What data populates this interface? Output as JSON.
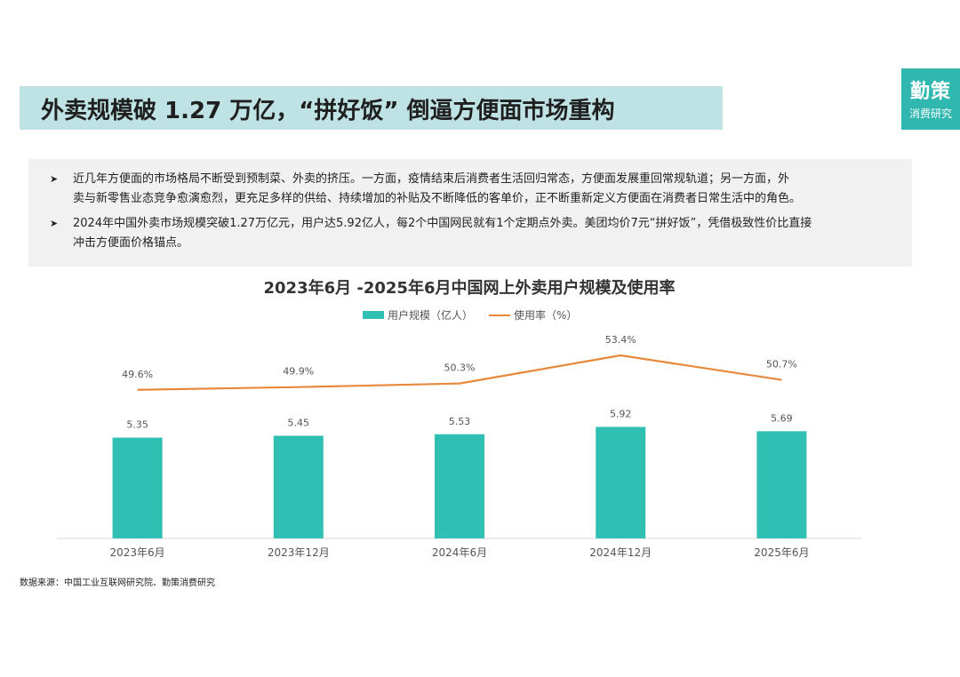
{
  "header": {
    "title": "外卖规模破 1.27 万亿，“拼好饭” 倒逼方便面市场重构"
  },
  "logo": {
    "main": "勤策",
    "sub": "消费研究"
  },
  "summary": {
    "bullets": [
      {
        "icon": "arrow-right-icon",
        "lines": [
          "近几年方便面的市场格局不断受到预制菜、外卖的挤压。一方面，疫情结束后消费者生活回归常态，方便面发展重回常规轨道；另一方面，外",
          "卖与新零售业态竞争愈演愈烈，更充足多样的供给、持续增加的补贴及不断降低的客单价，正不断重新定义方便面在消费者日常生活中的角色。"
        ]
      },
      {
        "icon": "arrow-right-icon",
        "lines": [
          "2024年中国外卖市场规模突破1.27万亿元，用户达5.92亿人，每2个中国网民就有1个定期点外卖。美团均价7元“拼好饭”，凭借极致性价比直接",
          "冲击方便面价格锚点。"
        ]
      }
    ]
  },
  "chart_data": {
    "type": "bar",
    "title": "2023年6月 -2025年6月中国网上外卖用户规模及使用率",
    "categories": [
      "2023年6月",
      "2023年12月",
      "2024年6月",
      "2024年12月",
      "2025年6月"
    ],
    "series": [
      {
        "name": "用户规模（亿人）",
        "type": "bar",
        "values": [
          5.35,
          5.45,
          5.53,
          5.92,
          5.69
        ],
        "labels": [
          "5.35",
          "5.45",
          "5.53",
          "5.92",
          "5.69"
        ],
        "color": "#2fbfb3"
      },
      {
        "name": "使用率（%）",
        "type": "line",
        "values": [
          49.6,
          49.9,
          50.3,
          53.4,
          50.7
        ],
        "labels": [
          "49.6%",
          "49.9%",
          "50.3%",
          "53.4%",
          "50.7%"
        ],
        "color": "#e8883a"
      }
    ],
    "bar_axis_range": [
      0,
      10
    ],
    "line_axis_range": [
      30,
      58
    ],
    "legend_position": "top-center",
    "grid": false
  },
  "footer": {
    "source": "数据来源：中国工业互联网研究院、勤策消费研究"
  }
}
